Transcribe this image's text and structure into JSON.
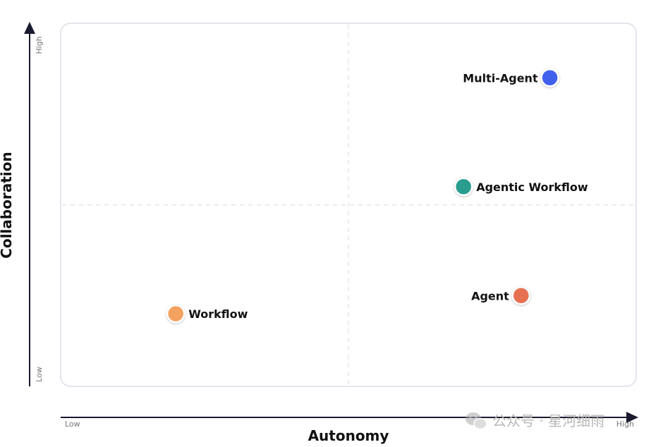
{
  "chart_data": {
    "type": "scatter",
    "xlabel": "Autonomy",
    "ylabel": "Collaboration",
    "x_ticks": {
      "low": "Low",
      "high": "High"
    },
    "y_ticks": {
      "low": "Low",
      "high": "High"
    },
    "xlim": [
      0,
      1
    ],
    "ylim": [
      0,
      1
    ],
    "quadrant_dividers": {
      "x": 0.5,
      "y": 0.5
    },
    "points": [
      {
        "label": "Workflow",
        "x": 0.2,
        "y": 0.2,
        "color": "#f4a261",
        "label_side": "right"
      },
      {
        "label": "Agent",
        "x": 0.8,
        "y": 0.25,
        "color": "#e76f51",
        "label_side": "left"
      },
      {
        "label": "Agentic Workflow",
        "x": 0.7,
        "y": 0.55,
        "color": "#2a9d8f",
        "label_side": "right"
      },
      {
        "label": "Multi-Agent",
        "x": 0.85,
        "y": 0.85,
        "color": "#4361ee",
        "label_side": "left"
      }
    ]
  },
  "watermark": {
    "text": "公众号 · 星河细雨"
  }
}
